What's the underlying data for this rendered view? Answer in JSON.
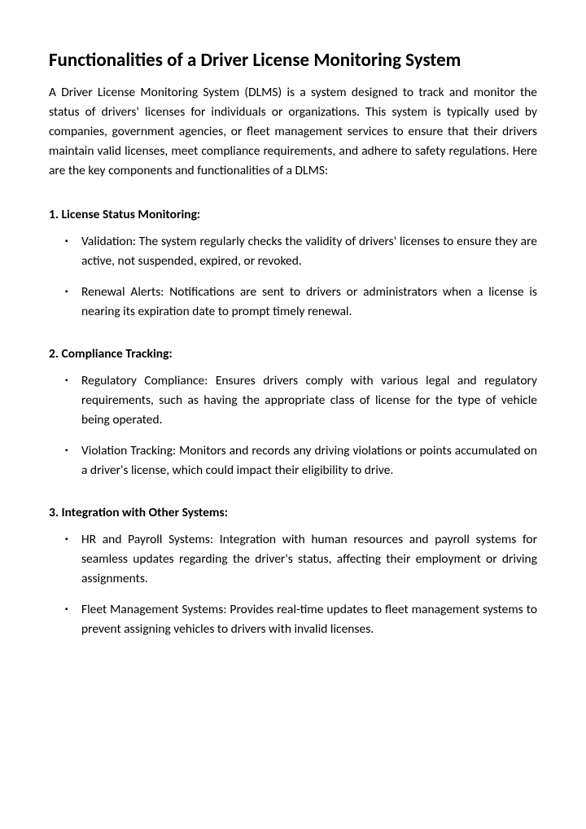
{
  "title": "Functionalities of a Driver License Monitoring System",
  "intro": "A Driver License Monitoring System (DLMS) is a system designed to track and monitor the status of drivers' licenses for individuals or organizations. This system is typically used by companies, government agencies, or fleet management services to ensure that their drivers maintain valid licenses, meet compliance requirements, and adhere to safety regulations. Here are the key components and functionalities of a DLMS:",
  "sections": [
    {
      "heading": "1. License Status Monitoring:",
      "items": [
        "Validation: The system regularly checks the validity of drivers' licenses to ensure they are active, not suspended, expired, or revoked.",
        "Renewal Alerts: Notifications are sent to drivers or administrators when a license is nearing its expiration date to prompt timely renewal."
      ]
    },
    {
      "heading": "2. Compliance Tracking:",
      "items": [
        "Regulatory Compliance: Ensures drivers comply with various legal and regulatory requirements, such as having the appropriate class of license for the type of vehicle being operated.",
        "Violation Tracking: Monitors and records any driving violations or points accumulated on a driver's license, which could impact their eligibility to drive."
      ]
    },
    {
      "heading": "3. Integration with Other Systems:",
      "items": [
        "HR and Payroll Systems: Integration with human resources and payroll systems for seamless updates regarding the driver's status, affecting their employment or driving assignments.",
        "Fleet Management Systems: Provides real-time updates to fleet management systems to prevent assigning vehicles to drivers with invalid licenses."
      ]
    }
  ]
}
